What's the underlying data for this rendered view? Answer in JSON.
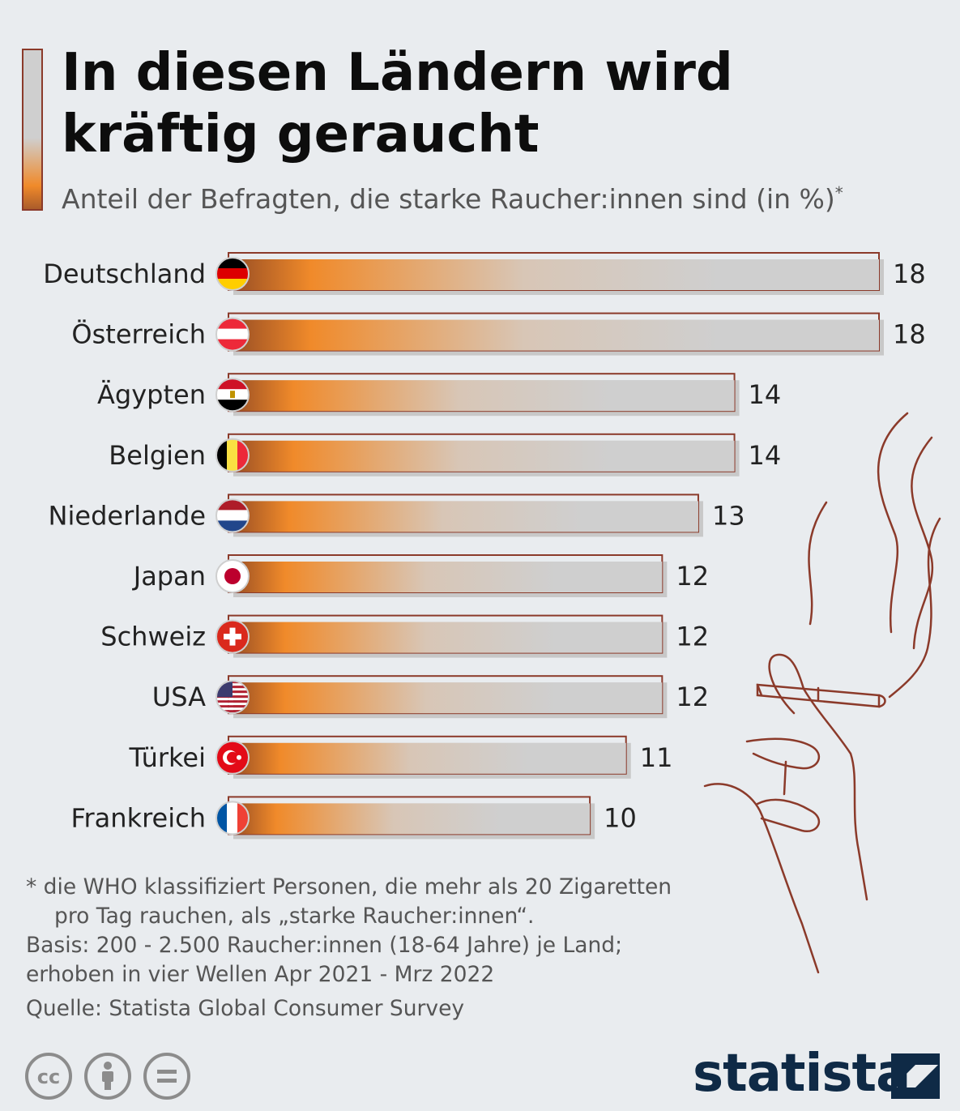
{
  "header": {
    "title": "In diesen Ländern wird kräftig geraucht",
    "subtitle": "Anteil der Befragten, die starke Raucher:innen sind (in %)",
    "subtitle_mark": "*"
  },
  "chart_data": {
    "type": "bar",
    "orientation": "horizontal",
    "categories": [
      "Deutschland",
      "Österreich",
      "Ägypten",
      "Belgien",
      "Niederlande",
      "Japan",
      "Schweiz",
      "USA",
      "Türkei",
      "Frankreich"
    ],
    "values": [
      18,
      18,
      14,
      14,
      13,
      12,
      12,
      12,
      11,
      10
    ],
    "value_labels": [
      "18",
      "18",
      "14",
      "14",
      "13",
      "12",
      "12",
      "12",
      "11",
      "10"
    ],
    "flags": [
      "germany-flag-icon",
      "austria-flag-icon",
      "egypt-flag-icon",
      "belgium-flag-icon",
      "netherlands-flag-icon",
      "japan-flag-icon",
      "switzerland-flag-icon",
      "usa-flag-icon",
      "turkey-flag-icon",
      "france-flag-icon"
    ],
    "title": "In diesen Ländern wird kräftig geraucht",
    "xlabel": "",
    "ylabel": "",
    "xlim": [
      0,
      18
    ],
    "grid": false,
    "legend": "none",
    "colors": {
      "bar_start": "#a85a2a",
      "bar_orange": "#f08a2a",
      "bar_end": "#cfcfcf",
      "bar_outline": "#8b3a2a"
    }
  },
  "footnotes": {
    "line1": "* die WHO klassifiziert Personen, die mehr als 20 Zigaretten",
    "line2": "pro Tag rauchen, als „starke Raucher:innen“.",
    "line3": "Basis: 200 - 2.500 Raucher:innen (18-64 Jahre) je Land;",
    "line4": "erhoben in vier Wellen Apr 2021 - Mrz 2022",
    "source": "Quelle: Statista Global Consumer Survey"
  },
  "license_icons": [
    "creative-commons-icon",
    "attribution-icon",
    "no-derivatives-icon"
  ],
  "brand": {
    "name": "statista",
    "color": "#0f2a46"
  }
}
